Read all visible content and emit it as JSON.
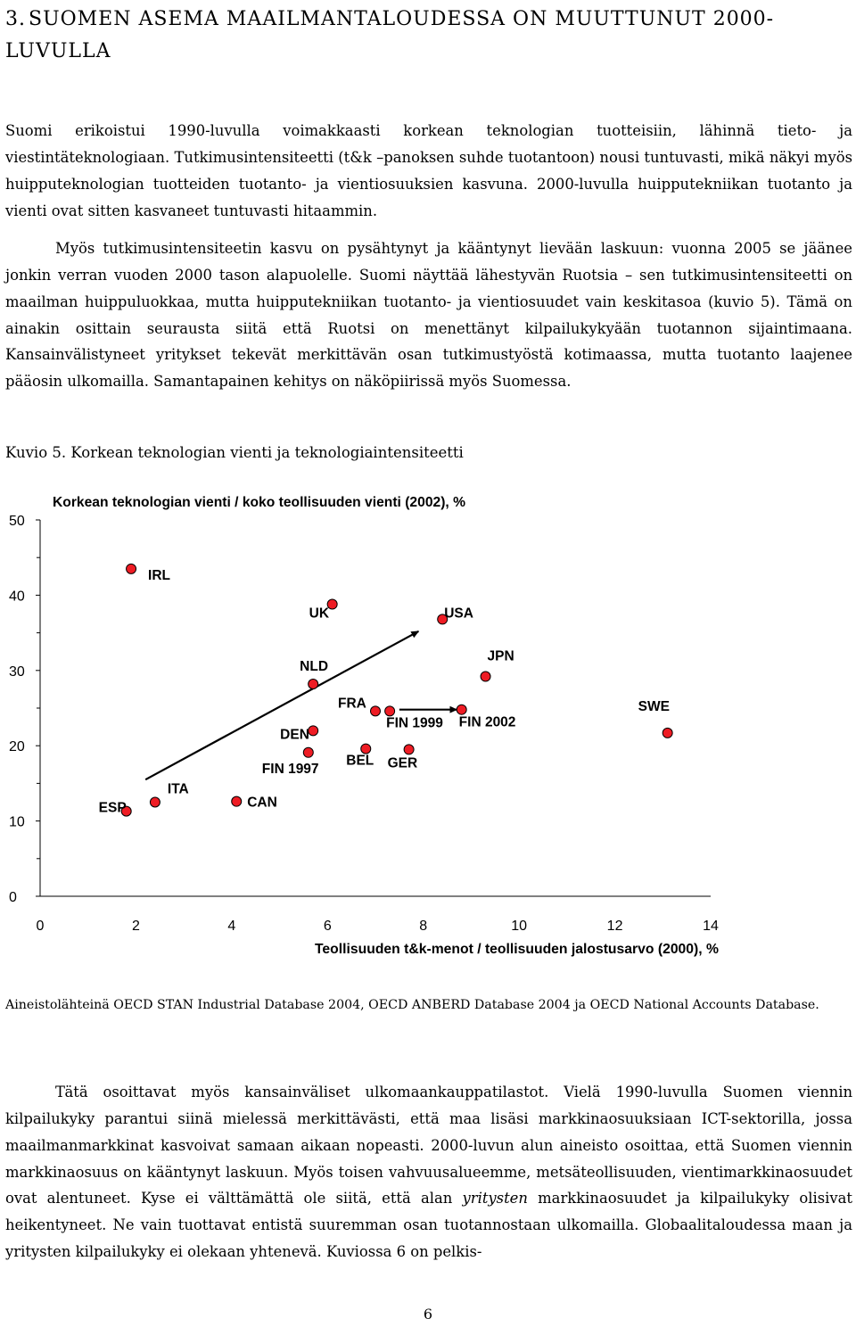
{
  "heading": {
    "number": "3.",
    "title_line1": "SUOMEN ASEMA MAAILMANTALOUDESSA ON MUUTTUNUT 2000-",
    "title_line2": "LUVULLA"
  },
  "para1": "Suomi erikoistui 1990-luvulla voimakkaasti korkean teknologian tuotteisiin, lähinnä tieto- ja viestintäteknologiaan. Tutkimusintensiteetti (t&k –panoksen suhde tuotantoon) nousi tuntuvasti, mikä näkyi myös huipputeknologian tuotteiden tuotanto- ja vientiosuuksien kasvuna. 2000-luvulla huipputekniikan tuotanto ja vienti ovat sitten kasvaneet tuntuvasti hitaammin.",
  "para2": "Myös tutkimusintensiteetin kasvu on pysähtynyt ja kääntynyt lievään laskuun: vuonna 2005 se jäänee jonkin verran vuoden 2000 tason alapuolelle. Suomi näyttää lähestyvän Ruotsia – sen tutkimusintensiteetti on maailman huippuluokkaa, mutta huipputekniikan tuotanto- ja vientiosuudet vain keskitasoa (kuvio 5). Tämä on ainakin osittain seurausta siitä että Ruotsi on menettänyt kilpailukykyään tuotannon sijaintimaana. Kansainvälistyneet yritykset tekevät merkittävän osan tutkimustyöstä kotimaassa, mutta tuotanto laajenee pääosin ulkomailla. Samantapainen kehitys on näköpiirissä myös Suomessa.",
  "figure_caption": "Kuvio 5. Korkean teknologian vienti ja teknologiaintensiteetti",
  "chart_data": {
    "type": "scatter",
    "title": "Korkean teknologian vienti / koko teollisuuden vienti (2002), %",
    "xlabel": "Teollisuuden t&k-menot / teollisuuden jalostusarvo (2000), %",
    "ylabel": "",
    "xlim": [
      0,
      14
    ],
    "ylim": [
      0,
      50
    ],
    "x_ticks": [
      "0",
      "2",
      "4",
      "6",
      "8",
      "10",
      "12",
      "14"
    ],
    "y_ticks": [
      "0",
      "10",
      "20",
      "30",
      "40",
      "50"
    ],
    "marker_color": "#ee1c24",
    "points": [
      {
        "label": "IRL",
        "x": 1.9,
        "y": 43.5
      },
      {
        "label": "UK",
        "x": 6.1,
        "y": 38.8
      },
      {
        "label": "USA",
        "x": 8.4,
        "y": 36.8
      },
      {
        "label": "NLD",
        "x": 5.7,
        "y": 28.2
      },
      {
        "label": "JPN",
        "x": 9.3,
        "y": 29.2
      },
      {
        "label": "FRA",
        "x": 7.0,
        "y": 24.6
      },
      {
        "label": "FIN 1999",
        "x": 7.3,
        "y": 24.6
      },
      {
        "label": "FIN 2002",
        "x": 8.8,
        "y": 24.8
      },
      {
        "label": "SWE",
        "x": 13.1,
        "y": 21.7
      },
      {
        "label": "DEN",
        "x": 5.7,
        "y": 22.0
      },
      {
        "label": "FIN 1997",
        "x": 5.6,
        "y": 19.1
      },
      {
        "label": "BEL",
        "x": 6.8,
        "y": 19.6
      },
      {
        "label": "GER",
        "x": 7.7,
        "y": 19.5
      },
      {
        "label": "ESP",
        "x": 1.8,
        "y": 11.3
      },
      {
        "label": "ITA",
        "x": 2.4,
        "y": 12.5
      },
      {
        "label": "CAN",
        "x": 4.1,
        "y": 12.6
      }
    ],
    "arrows": [
      {
        "from": [
          2.2,
          15.5
        ],
        "to": [
          7.9,
          35.2
        ]
      },
      {
        "from": [
          7.5,
          24.8
        ],
        "to": [
          8.7,
          24.8
        ]
      }
    ]
  },
  "source_note": "Aineistolähteinä OECD STAN Industrial Database 2004, OECD ANBERD Database 2004 ja OECD National Accounts Database.",
  "para3": {
    "before": "Tätä osoittavat myös kansainväliset ulkomaankauppatilastot. Vielä 1990-luvulla Suomen viennin kilpailukyky parantui siinä mielessä merkittävästi, että maa lisäsi markkinaosuuksiaan ICT-sektorilla, jossa maailmanmarkkinat kasvoivat samaan aikaan nopeasti. 2000-luvun alun aineisto osoittaa, että Suomen viennin markkinaosuus on kääntynyt laskuun. Myös toisen vahvuusalueemme, metsäteollisuuden, vientimarkkinaosuudet ovat alentuneet. Kyse ei välttämättä ole siitä, että alan",
    "emphasis": "yritysten",
    "after": "markkinaosuudet ja kilpailukyky olisivat heikentyneet. Ne vain tuottavat entistä suuremman osan tuotannostaan ulkomailla. Globaalitaloudessa maan ja yritysten kilpailukyky ei olekaan yhtenevä. Kuviossa 6 on pelkis-"
  },
  "page_number": "6"
}
